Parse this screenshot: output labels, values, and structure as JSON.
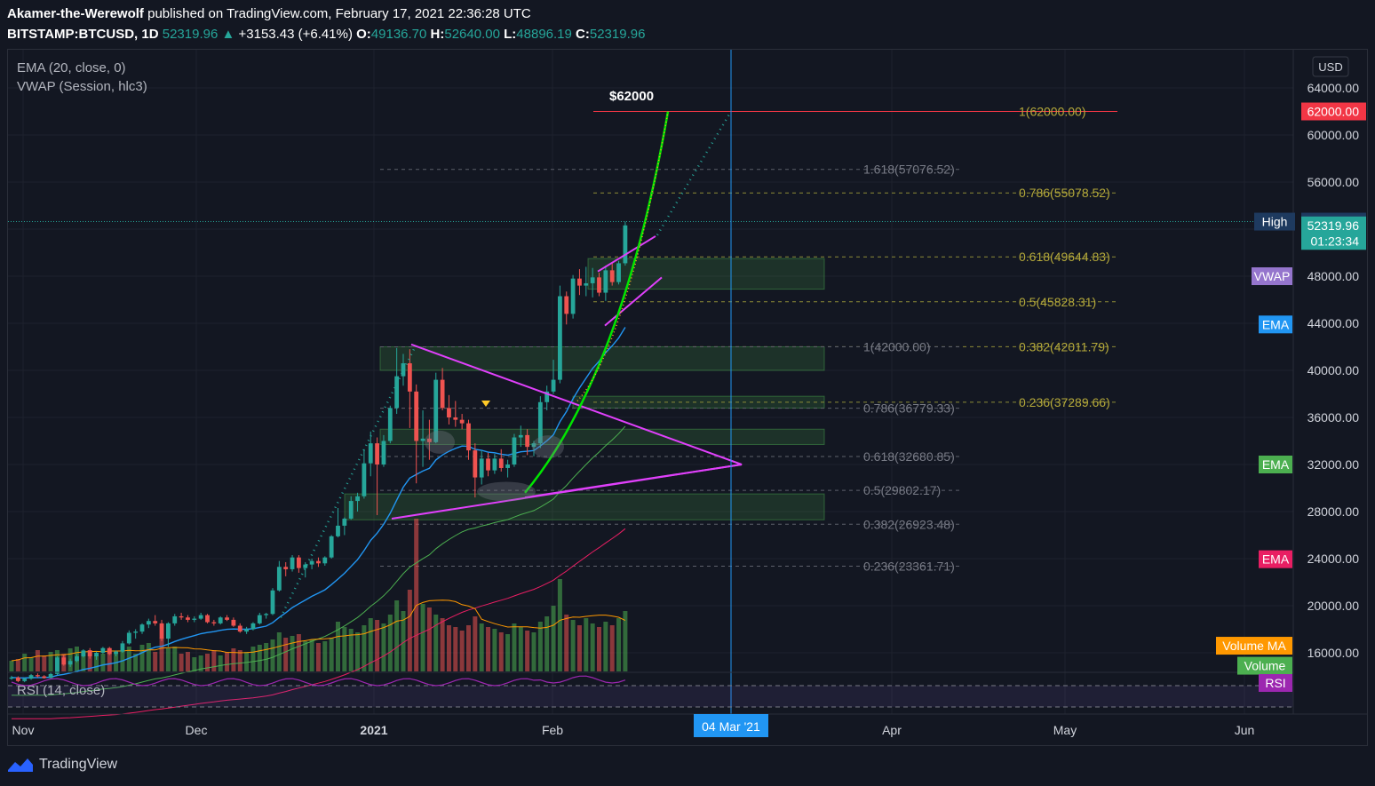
{
  "header": {
    "author": "Akamer-the-Werewolf",
    "published": "published on TradingView.com, February 17, 2021 22:36:28 UTC",
    "symbol": "BITSTAMP:BTCUSD, 1D",
    "last": "52319.96",
    "change": "+3153.43 (+6.41%)",
    "open_label": "O:",
    "open": "49136.70",
    "high_label": "H:",
    "high": "52640.00",
    "low_label": "L:",
    "low": "48896.19",
    "close_label": "C:",
    "close": "52319.96"
  },
  "indicators": {
    "ema": "EMA (20, close, 0)",
    "vwap": "VWAP (Session, hlc3)",
    "rsi": "RSI (14, close)"
  },
  "annotation": {
    "target": "$62000",
    "date_marker": "04 Mar '21"
  },
  "footer": {
    "brand": "TradingView"
  },
  "colors": {
    "bg": "#131722",
    "up": "#26a69a",
    "down": "#ef5350",
    "magenta": "#e040fb",
    "green_curve": "#00e600",
    "vwap": "#9575cd",
    "ema_blue": "#2196f3"
  },
  "chart_data": {
    "type": "candlestick",
    "currency": "USD",
    "x_ticks": [
      "Nov",
      "Dec",
      "2021",
      "Feb",
      "Apr",
      "May",
      "Jun"
    ],
    "y_ticks": [
      16000,
      20000,
      24000,
      28000,
      32000,
      36000,
      40000,
      44000,
      48000,
      52000,
      56000,
      60000,
      64000
    ],
    "ylim": [
      14000,
      65500
    ],
    "ohlc": [
      [
        13800,
        14050,
        13700,
        13900
      ],
      [
        13900,
        14000,
        13500,
        13600
      ],
      [
        13600,
        13900,
        13500,
        13800
      ],
      [
        13800,
        14200,
        13700,
        14100
      ],
      [
        14100,
        14250,
        13900,
        14000
      ],
      [
        14000,
        14100,
        13800,
        13850
      ],
      [
        13850,
        14300,
        13800,
        14200
      ],
      [
        14200,
        15700,
        14100,
        15600
      ],
      [
        15600,
        15800,
        14900,
        15000
      ],
      [
        15000,
        15500,
        14800,
        15300
      ],
      [
        15300,
        15900,
        15200,
        15700
      ],
      [
        15700,
        16300,
        15600,
        16200
      ],
      [
        16200,
        16400,
        15500,
        15700
      ],
      [
        15700,
        16100,
        15400,
        16000
      ],
      [
        16000,
        16500,
        15900,
        16400
      ],
      [
        16400,
        16500,
        15800,
        15900
      ],
      [
        15900,
        16200,
        15700,
        16100
      ],
      [
        16100,
        17000,
        16000,
        16800
      ],
      [
        16800,
        17900,
        16700,
        17700
      ],
      [
        17700,
        18000,
        17200,
        17800
      ],
      [
        17800,
        18500,
        17600,
        18400
      ],
      [
        18400,
        18900,
        18100,
        18700
      ],
      [
        18700,
        19200,
        18300,
        18500
      ],
      [
        18500,
        18800,
        17000,
        17200
      ],
      [
        17200,
        18600,
        16500,
        18500
      ],
      [
        18500,
        19300,
        18300,
        19100
      ],
      [
        19100,
        19400,
        18800,
        19000
      ],
      [
        19000,
        19200,
        18600,
        18800
      ],
      [
        18800,
        19100,
        18600,
        18900
      ],
      [
        18900,
        19400,
        18800,
        19200
      ],
      [
        19200,
        19300,
        18500,
        18600
      ],
      [
        18600,
        18800,
        18300,
        18500
      ],
      [
        18500,
        19100,
        18400,
        19000
      ],
      [
        19000,
        19200,
        18700,
        18800
      ],
      [
        18800,
        19000,
        18200,
        18300
      ],
      [
        18300,
        18500,
        17700,
        17800
      ],
      [
        17800,
        18200,
        17600,
        18000
      ],
      [
        18000,
        18600,
        17900,
        18500
      ],
      [
        18500,
        19400,
        18400,
        19200
      ],
      [
        19200,
        19400,
        18900,
        19300
      ],
      [
        19300,
        21500,
        19200,
        21300
      ],
      [
        21300,
        23800,
        21200,
        23300
      ],
      [
        23300,
        23700,
        22500,
        23100
      ],
      [
        23100,
        24300,
        22900,
        24100
      ],
      [
        24100,
        24300,
        22800,
        23200
      ],
      [
        23200,
        23700,
        22400,
        23500
      ],
      [
        23500,
        24000,
        23100,
        23800
      ],
      [
        23800,
        24100,
        23300,
        23600
      ],
      [
        23600,
        24200,
        23400,
        24100
      ],
      [
        24100,
        26000,
        24000,
        25900
      ],
      [
        25900,
        28300,
        25800,
        26800
      ],
      [
        26800,
        27500,
        26000,
        27400
      ],
      [
        27400,
        29300,
        27300,
        28900
      ],
      [
        28900,
        29600,
        28000,
        29300
      ],
      [
        29300,
        33300,
        29100,
        32100
      ],
      [
        32100,
        34800,
        31000,
        33800
      ],
      [
        33800,
        34300,
        27700,
        32000
      ],
      [
        32000,
        34500,
        31800,
        34000
      ],
      [
        34000,
        37000,
        33800,
        36800
      ],
      [
        36800,
        41900,
        36300,
        39500
      ],
      [
        39500,
        41400,
        38700,
        40600
      ],
      [
        40600,
        41800,
        35100,
        38200
      ],
      [
        38200,
        38800,
        30400,
        34000
      ],
      [
        34000,
        36600,
        31800,
        34200
      ],
      [
        34200,
        35800,
        32400,
        33900
      ],
      [
        33900,
        39800,
        33800,
        39200
      ],
      [
        39200,
        40200,
        36600,
        36800
      ],
      [
        36800,
        37900,
        35400,
        36000
      ],
      [
        36000,
        37400,
        35200,
        35800
      ],
      [
        35800,
        36300,
        35000,
        35500
      ],
      [
        35500,
        35800,
        32400,
        33200
      ],
      [
        33200,
        33800,
        29200,
        30900
      ],
      [
        30900,
        33200,
        30300,
        32500
      ],
      [
        32500,
        33000,
        31000,
        31500
      ],
      [
        31500,
        32900,
        31200,
        32500
      ],
      [
        32500,
        33300,
        31400,
        31700
      ],
      [
        31700,
        32400,
        30900,
        32000
      ],
      [
        32000,
        34600,
        31800,
        34300
      ],
      [
        34300,
        35300,
        33500,
        34500
      ],
      [
        34500,
        35000,
        32800,
        33500
      ],
      [
        33500,
        34000,
        32700,
        33800
      ],
      [
        33800,
        37800,
        33400,
        37300
      ],
      [
        37300,
        38700,
        36600,
        38200
      ],
      [
        38200,
        40900,
        38000,
        39200
      ],
      [
        39200,
        47200,
        38900,
        46300
      ],
      [
        46300,
        46700,
        43900,
        44800
      ],
      [
        44800,
        48100,
        44400,
        47800
      ],
      [
        47800,
        48600,
        46400,
        47200
      ],
      [
        47200,
        48800,
        46300,
        47400
      ],
      [
        47400,
        48700,
        46200,
        47900
      ],
      [
        47900,
        48300,
        46300,
        46600
      ],
      [
        46600,
        48900,
        45900,
        48500
      ],
      [
        48500,
        49100,
        47200,
        47500
      ],
      [
        47500,
        49300,
        47300,
        49100
      ],
      [
        49100,
        52640,
        48900,
        52320
      ]
    ],
    "volume_rel": [
      0.3,
      0.35,
      0.5,
      0.4,
      0.6,
      0.45,
      0.55,
      0.6,
      0.5,
      0.65,
      0.7,
      0.55,
      0.6,
      0.45,
      0.5,
      0.65,
      0.55,
      0.6,
      0.7,
      0.5,
      0.75,
      0.8,
      0.55,
      0.95,
      0.65,
      0.7,
      0.5,
      0.55,
      0.4,
      0.45,
      0.5,
      0.6,
      0.45,
      0.55,
      0.65,
      0.6,
      0.55,
      0.7,
      0.75,
      0.8,
      0.9,
      1.1,
      0.95,
      1.0,
      1.05,
      0.85,
      0.9,
      0.8,
      0.85,
      0.95,
      1.4,
      1.25,
      1.2,
      1.1,
      1.3,
      1.5,
      1.45,
      1.35,
      1.6,
      2.0,
      1.7,
      2.3,
      4.3,
      1.9,
      1.8,
      1.6,
      1.5,
      1.3,
      1.25,
      1.15,
      1.3,
      1.55,
      1.35,
      1.25,
      1.2,
      1.1,
      1.05,
      1.35,
      1.25,
      1.15,
      1.1,
      1.4,
      1.55,
      1.85,
      2.6,
      1.6,
      1.45,
      1.3,
      1.5,
      1.35,
      1.25,
      1.4,
      1.3,
      1.5,
      1.7
    ],
    "fib_levels_right": [
      {
        "label": "1(62000.00)",
        "price": 62000
      },
      {
        "label": "0.786(55078.52)",
        "price": 55078.52
      },
      {
        "label": "0.618(49644.83)",
        "price": 49644.83
      },
      {
        "label": "0.5(45828.31)",
        "price": 45828.31
      },
      {
        "label": "0.382(42011.79)",
        "price": 42011.79
      },
      {
        "label": "0.236(37289.66)",
        "price": 37289.66
      }
    ],
    "fib_levels_left": [
      {
        "label": "1.618(57076.52)",
        "price": 57076.52
      },
      {
        "label": "1(42000.00)",
        "price": 42000
      },
      {
        "label": "0.786(36779.33)",
        "price": 36779.33
      },
      {
        "label": "0.618(32680.85)",
        "price": 32680.85
      },
      {
        "label": "0.5(29802.17)",
        "price": 29802.17
      },
      {
        "label": "0.382(26923.48)",
        "price": 26923.48
      },
      {
        "label": "0.236(23361.71)",
        "price": 23361.71
      }
    ],
    "price_tags": [
      {
        "label": "",
        "value": "62000.00",
        "price": 62000,
        "color": "#f23645"
      },
      {
        "label": "High",
        "value": "52640.00",
        "price": 52640,
        "color": "#1e3a5f"
      },
      {
        "label": "",
        "value": "52319.96",
        "price": 52319.96,
        "color": "#26a69a"
      },
      {
        "label": "",
        "value": "01:23:34",
        "price": 51000,
        "color": "#26a69a"
      }
    ],
    "legend_tags": [
      {
        "label": "VWAP",
        "price": 48000,
        "color": "#9575cd"
      },
      {
        "label": "EMA",
        "price": 43900,
        "color": "#2196f3"
      },
      {
        "label": "EMA",
        "price": 32000,
        "color": "#4caf50"
      },
      {
        "label": "EMA",
        "price": 23950,
        "color": "#e91e63"
      },
      {
        "label": "Volume MA",
        "price": 16600,
        "color": "#ff9800"
      },
      {
        "label": "Volume",
        "price": 14900,
        "color": "#4caf50"
      },
      {
        "label": "RSI",
        "price": null,
        "color": "#9c27b0"
      }
    ]
  }
}
